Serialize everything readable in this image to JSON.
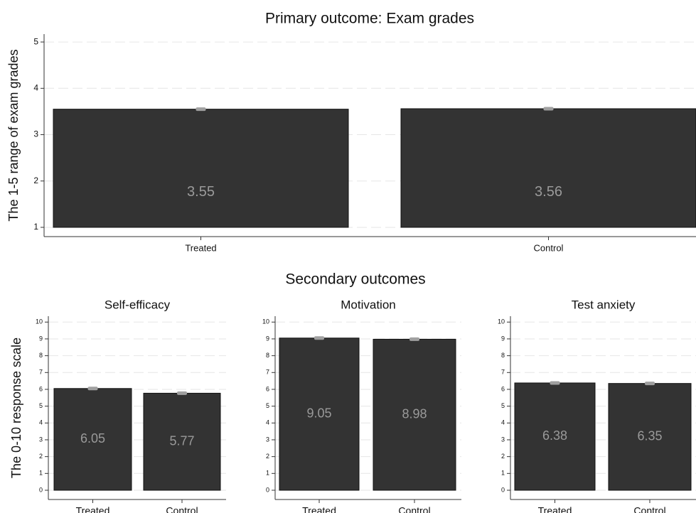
{
  "section_title": "Secondary outcomes",
  "chart_data": [
    {
      "type": "bar",
      "title": "Primary outcome: Exam grades",
      "ylabel": "The 1-5 range of exam grades",
      "categories": [
        "Treated",
        "Control"
      ],
      "values": [
        3.55,
        3.56
      ],
      "errors": [
        0.02,
        0.02
      ],
      "color": "#333333",
      "error_color": "#a0a0a0",
      "base": 1,
      "ylim": [
        0.8,
        5.17
      ],
      "yticks": [
        1,
        2,
        3,
        4,
        5
      ],
      "grid": true
    },
    {
      "type": "bar",
      "title": "Self-efficacy",
      "ylabel": "The 0-10 response scale",
      "categories": [
        "Treated",
        "Control"
      ],
      "values": [
        6.05,
        5.77
      ],
      "errors": [
        0.08,
        0.08
      ],
      "color": "#333333",
      "error_color": "#a0a0a0",
      "base": 0,
      "ylim": [
        -0.55,
        10.35
      ],
      "yticks": [
        0,
        1,
        2,
        3,
        4,
        5,
        6,
        7,
        8,
        9,
        10
      ],
      "grid": true
    },
    {
      "type": "bar",
      "title": "Motivation",
      "categories": [
        "Treated",
        "Control"
      ],
      "values": [
        9.05,
        8.98
      ],
      "errors": [
        0.06,
        0.06
      ],
      "color": "#333333",
      "error_color": "#a0a0a0",
      "base": 0,
      "ylim": [
        -0.55,
        10.35
      ],
      "yticks": [
        0,
        1,
        2,
        3,
        4,
        5,
        6,
        7,
        8,
        9,
        10
      ],
      "grid": true
    },
    {
      "type": "bar",
      "title": "Test anxiety",
      "categories": [
        "Treated",
        "Control"
      ],
      "values": [
        6.38,
        6.35
      ],
      "errors": [
        0.08,
        0.08
      ],
      "color": "#333333",
      "error_color": "#a0a0a0",
      "base": 0,
      "ylim": [
        -0.55,
        10.35
      ],
      "yticks": [
        0,
        1,
        2,
        3,
        4,
        5,
        6,
        7,
        8,
        9,
        10
      ],
      "grid": true
    }
  ]
}
